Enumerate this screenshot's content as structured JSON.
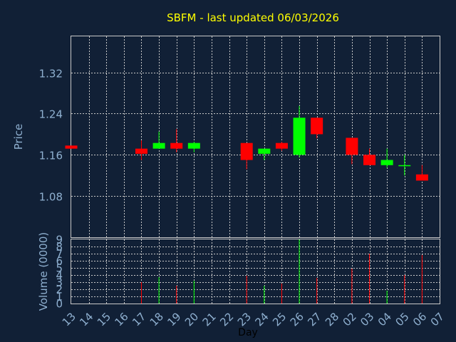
{
  "chart_data": [
    {
      "type": "candlestick",
      "title": "SBFM - last updated 06/03/2026",
      "ylabel": "Price",
      "ylim": [
        1.0,
        1.39
      ],
      "yticks": [
        "1.32",
        "1.24",
        "1.16",
        "1.08"
      ],
      "ytick_values": [
        1.32,
        1.24,
        1.16,
        1.08
      ],
      "grid": true,
      "colors": {
        "up": "#00ff00",
        "down": "#ff0000",
        "background": "#112036",
        "grid": "#c8c8c8",
        "axis_text": "#8fb0d0",
        "title": "#ffff00"
      },
      "days": [
        "13",
        "14",
        "15",
        "16",
        "17",
        "18",
        "19",
        "20",
        "21",
        "22",
        "23",
        "24",
        "25",
        "26",
        "27",
        "28",
        "02",
        "03",
        "04",
        "05",
        "06",
        "07"
      ],
      "candles": [
        {
          "day": 0,
          "open": 1.178,
          "high": 1.178,
          "low": 1.172,
          "close": 1.172
        },
        {
          "day": 4,
          "open": 1.172,
          "high": 1.188,
          "low": 1.15,
          "close": 1.162
        },
        {
          "day": 5,
          "open": 1.172,
          "high": 1.205,
          "low": 1.172,
          "close": 1.183
        },
        {
          "day": 6,
          "open": 1.183,
          "high": 1.21,
          "low": 1.165,
          "close": 1.172
        },
        {
          "day": 7,
          "open": 1.172,
          "high": 1.185,
          "low": 1.165,
          "close": 1.183
        },
        {
          "day": 10,
          "open": 1.183,
          "high": 1.183,
          "low": 1.132,
          "close": 1.15
        },
        {
          "day": 11,
          "open": 1.162,
          "high": 1.172,
          "low": 1.15,
          "close": 1.172
        },
        {
          "day": 12,
          "open": 1.183,
          "high": 1.185,
          "low": 1.168,
          "close": 1.172
        },
        {
          "day": 13,
          "open": 1.16,
          "high": 1.255,
          "low": 1.155,
          "close": 1.232
        },
        {
          "day": 14,
          "open": 1.232,
          "high": 1.232,
          "low": 1.192,
          "close": 1.2
        },
        {
          "day": 16,
          "open": 1.193,
          "high": 1.193,
          "low": 1.142,
          "close": 1.16
        },
        {
          "day": 17,
          "open": 1.16,
          "high": 1.172,
          "low": 1.14,
          "close": 1.14
        },
        {
          "day": 18,
          "open": 1.14,
          "high": 1.172,
          "low": 1.135,
          "close": 1.15
        },
        {
          "day": 19,
          "open": 1.14,
          "high": 1.16,
          "low": 1.12,
          "close": 1.14
        },
        {
          "day": 20,
          "open": 1.122,
          "high": 1.14,
          "low": 1.11,
          "close": 1.11
        }
      ]
    },
    {
      "type": "bar",
      "xlabel": "Day",
      "ylabel": "Volume (0000)",
      "ylim": [
        0,
        9
      ],
      "yticks": [
        "0",
        "1",
        "2",
        "3",
        "4",
        "5",
        "6",
        "7",
        "8",
        "9"
      ],
      "ytick_values": [
        0,
        1,
        2,
        3,
        4,
        5,
        6,
        7,
        8,
        9
      ],
      "volumes": [
        {
          "day": 4,
          "value": 3.0,
          "direction": "down"
        },
        {
          "day": 5,
          "value": 3.7,
          "direction": "up"
        },
        {
          "day": 6,
          "value": 2.5,
          "direction": "down"
        },
        {
          "day": 7,
          "value": 3.2,
          "direction": "up"
        },
        {
          "day": 10,
          "value": 3.9,
          "direction": "down"
        },
        {
          "day": 11,
          "value": 2.5,
          "direction": "up"
        },
        {
          "day": 12,
          "value": 2.8,
          "direction": "down"
        },
        {
          "day": 13,
          "value": 9.0,
          "direction": "up"
        },
        {
          "day": 14,
          "value": 3.6,
          "direction": "down"
        },
        {
          "day": 16,
          "value": 4.9,
          "direction": "down"
        },
        {
          "day": 17,
          "value": 7.0,
          "direction": "down"
        },
        {
          "day": 18,
          "value": 1.8,
          "direction": "up"
        },
        {
          "day": 19,
          "value": 4.0,
          "direction": "down"
        },
        {
          "day": 20,
          "value": 6.8,
          "direction": "down"
        }
      ]
    }
  ]
}
